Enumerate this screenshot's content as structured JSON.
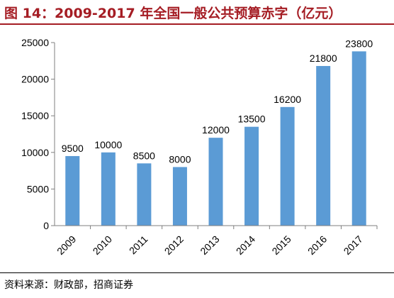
{
  "header": {
    "title": "图 14：2009-2017 年全国一般公共预算赤字（亿元）"
  },
  "footer": {
    "source": "资料来源：财政部，招商证券"
  },
  "colors": {
    "title": "#a51d24",
    "bar": "#5b9bd5",
    "axis": "#7f7f7f"
  },
  "chart_data": {
    "type": "bar",
    "title": "图 14：2009-2017 年全国一般公共预算赤字（亿元）",
    "xlabel": "",
    "ylabel": "",
    "categories": [
      "2009",
      "2010",
      "2011",
      "2012",
      "2013",
      "2014",
      "2015",
      "2016",
      "2017"
    ],
    "values": [
      9500,
      10000,
      8500,
      8000,
      12000,
      13500,
      16200,
      21800,
      23800
    ],
    "data_labels": [
      "9500",
      "10000",
      "8500",
      "8000",
      "12000",
      "13500",
      "16200",
      "21800",
      "23800"
    ],
    "yticks": [
      0,
      5000,
      10000,
      15000,
      20000,
      25000
    ],
    "ytick_labels": [
      "0",
      "5000",
      "10000",
      "15000",
      "20000",
      "25000"
    ],
    "ylim": [
      0,
      25000
    ],
    "grid": false,
    "legend": "none"
  }
}
